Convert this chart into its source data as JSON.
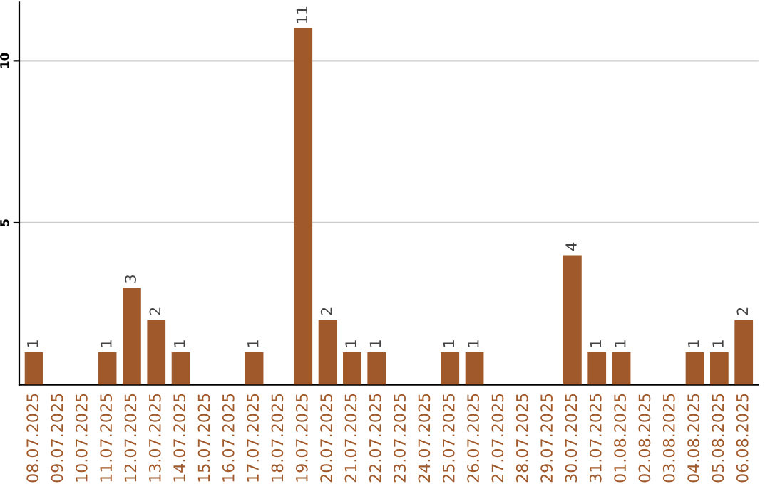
{
  "chart_data": {
    "type": "bar",
    "categories": [
      "08.07.2025",
      "09.07.2025",
      "10.07.2025",
      "11.07.2025",
      "12.07.2025",
      "13.07.2025",
      "14.07.2025",
      "15.07.2025",
      "16.07.2025",
      "17.07.2025",
      "18.07.2025",
      "19.07.2025",
      "20.07.2025",
      "21.07.2025",
      "22.07.2025",
      "23.07.2025",
      "24.07.2025",
      "25.07.2025",
      "26.07.2025",
      "27.07.2025",
      "28.07.2025",
      "29.07.2025",
      "30.07.2025",
      "31.07.2025",
      "01.08.2025",
      "02.08.2025",
      "03.08.2025",
      "04.08.2025",
      "05.08.2025",
      "06.08.2025"
    ],
    "values": [
      1,
      0,
      0,
      1,
      3,
      2,
      1,
      0,
      0,
      1,
      0,
      11,
      2,
      1,
      1,
      0,
      0,
      1,
      1,
      0,
      0,
      0,
      4,
      1,
      1,
      0,
      0,
      1,
      1,
      2
    ],
    "value_labels": [
      "1",
      null,
      null,
      "1",
      "3",
      "2",
      "1",
      null,
      null,
      "1",
      null,
      "11",
      "2",
      "1",
      "1",
      null,
      null,
      "1",
      "1",
      null,
      null,
      null,
      "4",
      "1",
      "1",
      null,
      null,
      "1",
      "1",
      "2"
    ],
    "color": "#a0592a",
    "ylim": [
      0,
      11.8
    ],
    "yticks": [
      5,
      10
    ],
    "grid": "y"
  }
}
